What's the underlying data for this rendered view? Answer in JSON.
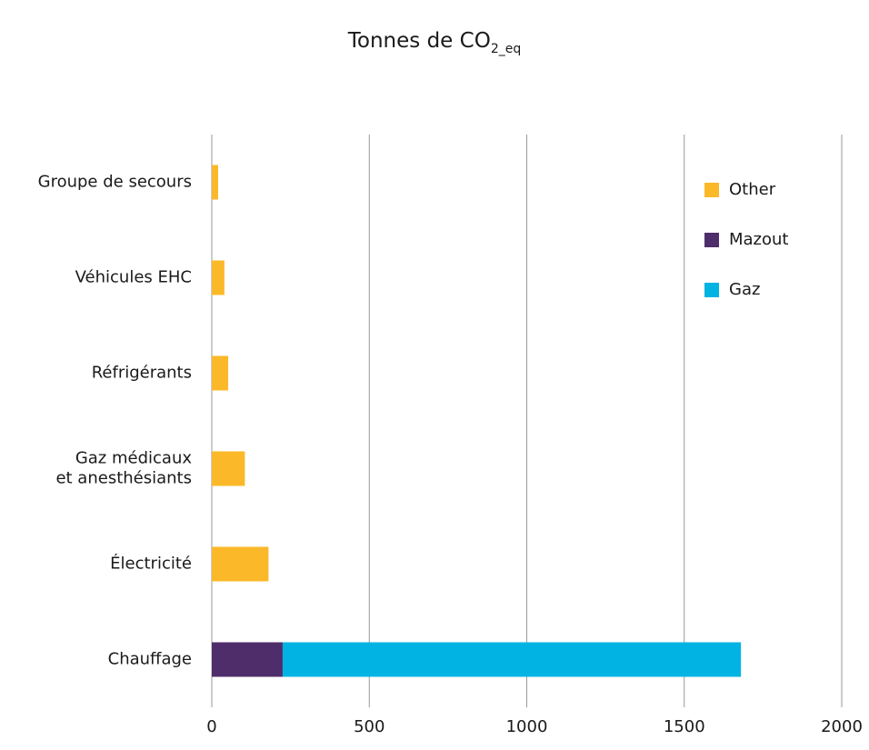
{
  "chart_data": {
    "type": "stacked_barh",
    "title": "Tonnes de CO",
    "title_subscript": "2_eq",
    "categories": [
      "Groupe de secours",
      "Véhicules EHC",
      "Réfrigérants",
      "Gaz médicaux\net anesthésiants",
      "Électricité",
      "Chauffage"
    ],
    "series": [
      {
        "name": "Other",
        "color": "#fbb829",
        "values": [
          20,
          40,
          52,
          105,
          180,
          null
        ]
      },
      {
        "name": "Mazout",
        "color": "#4f2d6b",
        "values": [
          null,
          null,
          null,
          null,
          null,
          225
        ]
      },
      {
        "name": "Gaz",
        "color": "#00b3e3",
        "values": [
          null,
          null,
          null,
          null,
          null,
          1455
        ]
      }
    ],
    "xlim": [
      0,
      2000
    ],
    "xticks": [
      0,
      500,
      1000,
      1500,
      2000
    ],
    "grid": true,
    "legend": "upper right"
  }
}
